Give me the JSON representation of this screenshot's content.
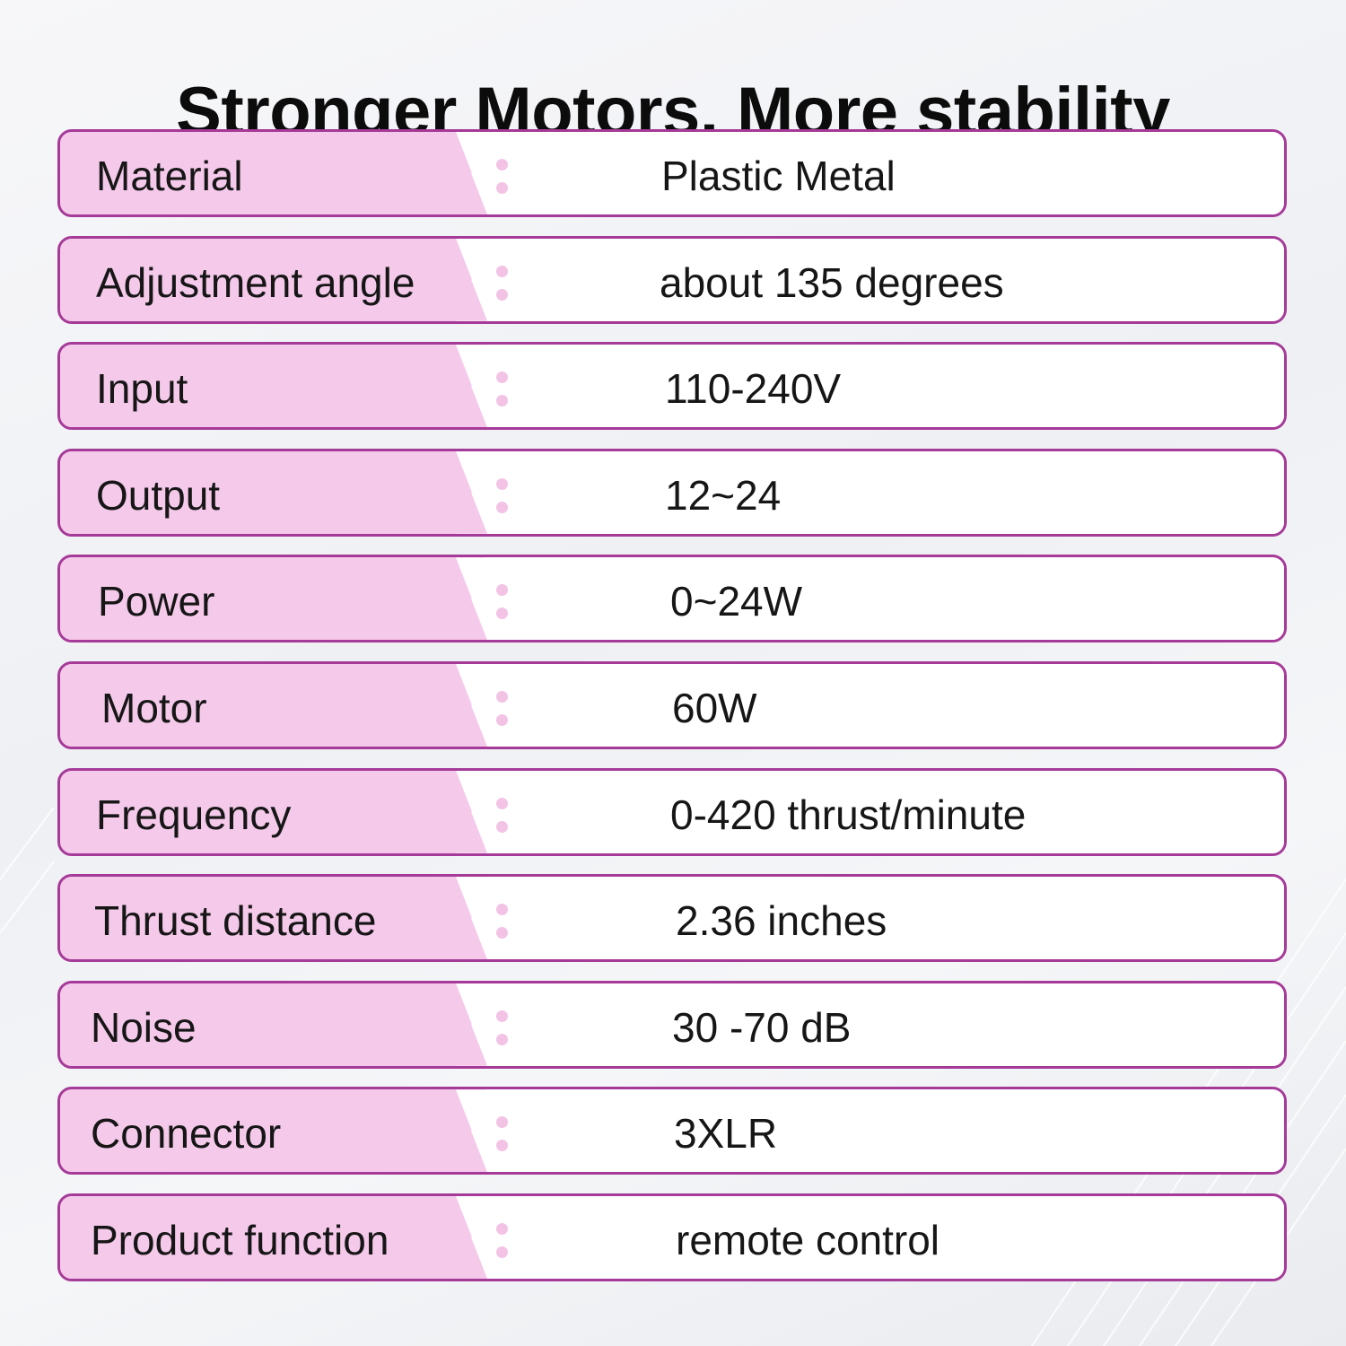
{
  "title": "Stronger Motors, More stability",
  "colors": {
    "label_background": "#f5c9ea",
    "border": "#a53a98",
    "colon_dots": "#f3c3e6",
    "text": "#161616"
  },
  "specs": [
    {
      "label": "Material",
      "value": "Plastic Metal"
    },
    {
      "label": "Adjustment angle",
      "value": "about 135 degrees"
    },
    {
      "label": "Input",
      "value": "110-240V"
    },
    {
      "label": "Output",
      "value": "12~24"
    },
    {
      "label": "Power",
      "value": "0~24W"
    },
    {
      "label": "Motor",
      "value": "60W"
    },
    {
      "label": "Frequency",
      "value": "0-420 thrust/minute"
    },
    {
      "label": "Thrust distance",
      "value": "2.36 inches"
    },
    {
      "label": "Noise",
      "value": "30 -70 dB"
    },
    {
      "label": "Connector",
      "value": "3XLR"
    },
    {
      "label": "Product function",
      "value": "remote control"
    }
  ]
}
